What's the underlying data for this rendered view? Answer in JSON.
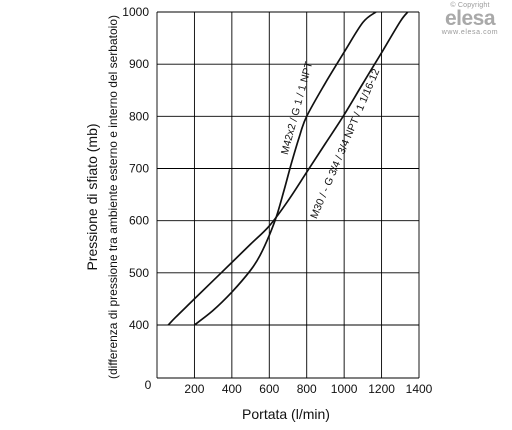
{
  "logo": {
    "copyright": "© Copyright",
    "brand": "elesa",
    "url": "www.elesa.com"
  },
  "chart_data": {
    "type": "line",
    "title": "",
    "xlabel": "Portata (l/min)",
    "ylabel": "Pressione di sfiato (mb)",
    "ylabel_sub": "(differenza di pressione tra ambiente esterno e interno del serbatoio)",
    "xlim": [
      0,
      1400
    ],
    "ylim": [
      0,
      1000
    ],
    "y_axis_display_start": 400,
    "x_ticks": [
      200,
      400,
      600,
      800,
      1000,
      1200,
      1400
    ],
    "x_tick_labels": [
      "200",
      "400",
      "600",
      "800",
      "1000",
      "1200",
      "1400"
    ],
    "y_ticks": [
      400,
      500,
      600,
      700,
      800,
      900,
      1000
    ],
    "y_tick_labels": [
      "400",
      "500",
      "600",
      "700",
      "800",
      "900",
      "1000"
    ],
    "origin_label": "0",
    "grid": true,
    "series": [
      {
        "name": "M42x2 / G 1 / 1 NPT",
        "x": [
          200,
          300,
          400,
          500,
          550,
          600,
          640,
          680,
          720,
          760,
          800,
          900,
          1000,
          1100,
          1170
        ],
        "y": [
          400,
          428,
          463,
          505,
          533,
          572,
          610,
          660,
          712,
          760,
          800,
          864,
          923,
          980,
          1000
        ]
      },
      {
        "name": "M30 / - G 3/4 / 3/4 NPT / 1 1/16-12",
        "x": [
          60,
          100,
          200,
          300,
          400,
          500,
          600,
          700,
          800,
          900,
          1000,
          1100,
          1200,
          1300,
          1340
        ],
        "y": [
          400,
          415,
          450,
          485,
          520,
          555,
          590,
          638,
          693,
          748,
          803,
          863,
          922,
          982,
          1000
        ]
      }
    ]
  }
}
